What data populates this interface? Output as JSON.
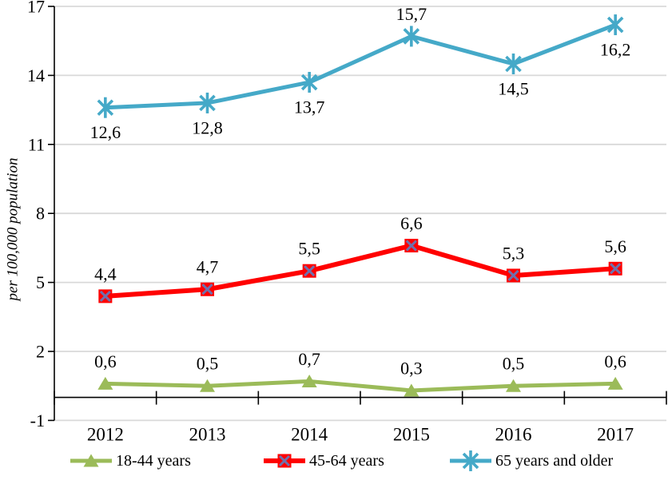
{
  "chart_data": {
    "type": "line",
    "title": "",
    "xlabel": "",
    "ylabel": "per 100,000 population",
    "categories": [
      "2012",
      "2013",
      "2014",
      "2015",
      "2016",
      "2017"
    ],
    "series": [
      {
        "name": "18-44 years",
        "color": "#9BBB59",
        "marker": "triangle",
        "line_width": 5,
        "values": [
          0.6,
          0.5,
          0.7,
          0.3,
          0.5,
          0.6
        ],
        "label_side": [
          "above",
          "above",
          "above",
          "above",
          "above",
          "above"
        ]
      },
      {
        "name": "45-64 years",
        "color": "#FF0000",
        "marker": "x-square",
        "marker_accent": "#7070AC",
        "line_width": 6,
        "values": [
          4.4,
          4.7,
          5.5,
          6.6,
          5.3,
          5.6
        ],
        "label_side": [
          "above",
          "above",
          "above",
          "above",
          "above",
          "above"
        ]
      },
      {
        "name": "65 years and older",
        "color": "#45A9C8",
        "marker": "asterisk",
        "line_width": 5,
        "values": [
          12.6,
          12.8,
          13.7,
          15.7,
          14.5,
          16.2
        ],
        "label_side": [
          "below",
          "below",
          "below",
          "above",
          "below",
          "below"
        ]
      }
    ],
    "yaxis": {
      "min": -1,
      "max": 17,
      "step": 3,
      "tick_labels": [
        "-1",
        "2",
        "5",
        "8",
        "11",
        "14",
        "17"
      ]
    },
    "decimal_separator": ",",
    "grid": true,
    "legend_position": "bottom"
  },
  "colors": {
    "gridline": "#D9D9D9",
    "axis": "#000000",
    "text": "#000000",
    "background": "#FFFFFF"
  }
}
